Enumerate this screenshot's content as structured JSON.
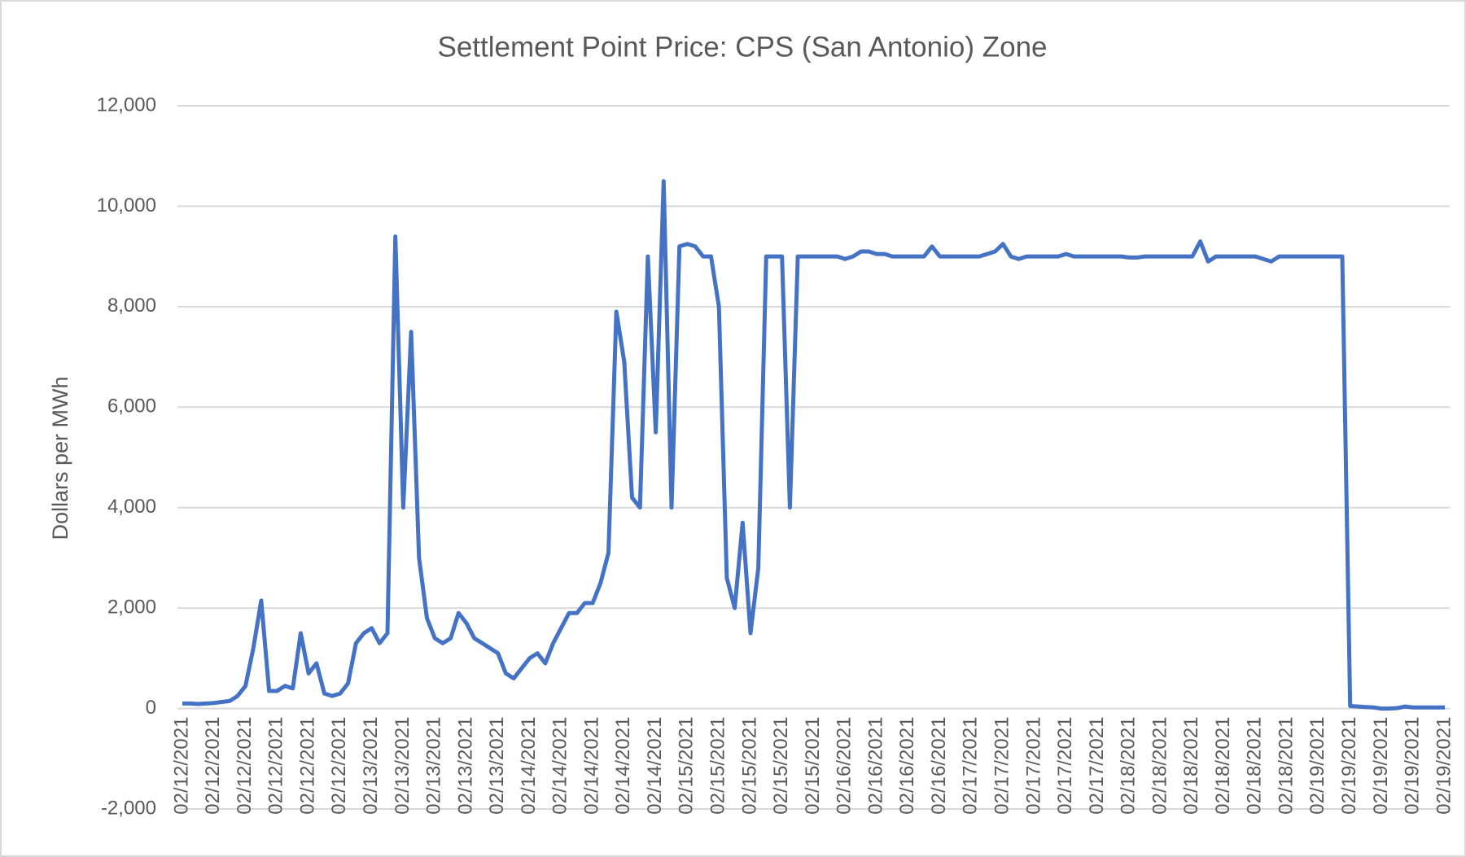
{
  "chart_data": {
    "type": "line",
    "title": "Settlement Point Price: CPS (San Antonio) Zone",
    "y_label": "Dollars per MWh",
    "categories": [
      "02/12/2021",
      null,
      null,
      null,
      "02/12/2021",
      null,
      null,
      null,
      "02/12/2021",
      null,
      null,
      null,
      "02/12/2021",
      null,
      null,
      null,
      "02/12/2021",
      null,
      null,
      null,
      "02/12/2021",
      null,
      null,
      null,
      "02/13/2021",
      null,
      null,
      null,
      "02/13/2021",
      null,
      null,
      null,
      "02/13/2021",
      null,
      null,
      null,
      "02/13/2021",
      null,
      null,
      null,
      "02/13/2021",
      null,
      null,
      null,
      "02/14/2021",
      null,
      null,
      null,
      "02/14/2021",
      null,
      null,
      null,
      "02/14/2021",
      null,
      null,
      null,
      "02/14/2021",
      null,
      null,
      null,
      "02/14/2021",
      null,
      null,
      null,
      "02/15/2021",
      null,
      null,
      null,
      "02/15/2021",
      null,
      null,
      null,
      "02/15/2021",
      null,
      null,
      null,
      "02/15/2021",
      null,
      null,
      null,
      "02/15/2021",
      null,
      null,
      null,
      "02/16/2021",
      null,
      null,
      null,
      "02/16/2021",
      null,
      null,
      null,
      "02/16/2021",
      null,
      null,
      null,
      "02/16/2021",
      null,
      null,
      null,
      "02/17/2021",
      null,
      null,
      null,
      "02/17/2021",
      null,
      null,
      null,
      "02/17/2021",
      null,
      null,
      null,
      "02/17/2021",
      null,
      null,
      null,
      "02/17/2021",
      null,
      null,
      null,
      "02/18/2021",
      null,
      null,
      null,
      "02/18/2021",
      null,
      null,
      null,
      "02/18/2021",
      null,
      null,
      null,
      "02/18/2021",
      null,
      null,
      null,
      "02/18/2021",
      null,
      null,
      null,
      "02/18/2021",
      null,
      null,
      null,
      "02/19/2021",
      null,
      null,
      null,
      "02/19/2021",
      null,
      null,
      null,
      "02/19/2021",
      null,
      null,
      null,
      "02/19/2021",
      null,
      null,
      null,
      "02/19/2021"
    ],
    "series": [
      {
        "name": "CPS",
        "color": "#4472c4",
        "values": [
          100,
          100,
          90,
          100,
          110,
          130,
          150,
          250,
          450,
          1200,
          2150,
          350,
          350,
          450,
          400,
          1500,
          700,
          900,
          300,
          250,
          300,
          500,
          1300,
          1500,
          1600,
          1300,
          1500,
          9400,
          4000,
          7500,
          3000,
          1800,
          1400,
          1300,
          1400,
          1900,
          1700,
          1400,
          1300,
          1200,
          1100,
          700,
          600,
          800,
          1000,
          1100,
          900,
          1300,
          1600,
          1900,
          1900,
          2100,
          2100,
          2500,
          3100,
          7900,
          6900,
          4200,
          4000,
          9000,
          5500,
          10500,
          4000,
          9200,
          9250,
          9200,
          9000,
          9000,
          8000,
          2600,
          2000,
          3700,
          1500,
          2800,
          9000,
          9000,
          9000,
          4000,
          9000,
          9000,
          9000,
          9000,
          9000,
          9000,
          8950,
          9000,
          9100,
          9100,
          9050,
          9050,
          9000,
          9000,
          9000,
          9000,
          9000,
          9200,
          9000,
          9000,
          9000,
          9000,
          9000,
          9000,
          9050,
          9100,
          9250,
          9000,
          8950,
          9000,
          9000,
          9000,
          9000,
          9000,
          9050,
          9000,
          9000,
          9000,
          9000,
          9000,
          9000,
          9000,
          8980,
          8980,
          9000,
          9000,
          9000,
          9000,
          9000,
          9000,
          9000,
          9300,
          8900,
          9000,
          9000,
          9000,
          9000,
          9000,
          9000,
          8950,
          8900,
          9000,
          9000,
          9000,
          9000,
          9000,
          9000,
          9000,
          9000,
          9000,
          50,
          40,
          30,
          20,
          0,
          0,
          10,
          40,
          20,
          20,
          20,
          20,
          20
        ]
      }
    ],
    "ylim": [
      -2000,
      12000
    ],
    "yticks": [
      {
        "value": -2000,
        "label": "-2,000"
      },
      0,
      {
        "value": 2000,
        "label": "2,000"
      },
      {
        "value": 4000,
        "label": "4,000"
      },
      {
        "value": 6000,
        "label": "6,000"
      },
      {
        "value": 8000,
        "label": "8,000"
      },
      {
        "value": 10000,
        "label": "10,000"
      },
      {
        "value": 12000,
        "label": "12,000"
      }
    ],
    "grid": true
  }
}
